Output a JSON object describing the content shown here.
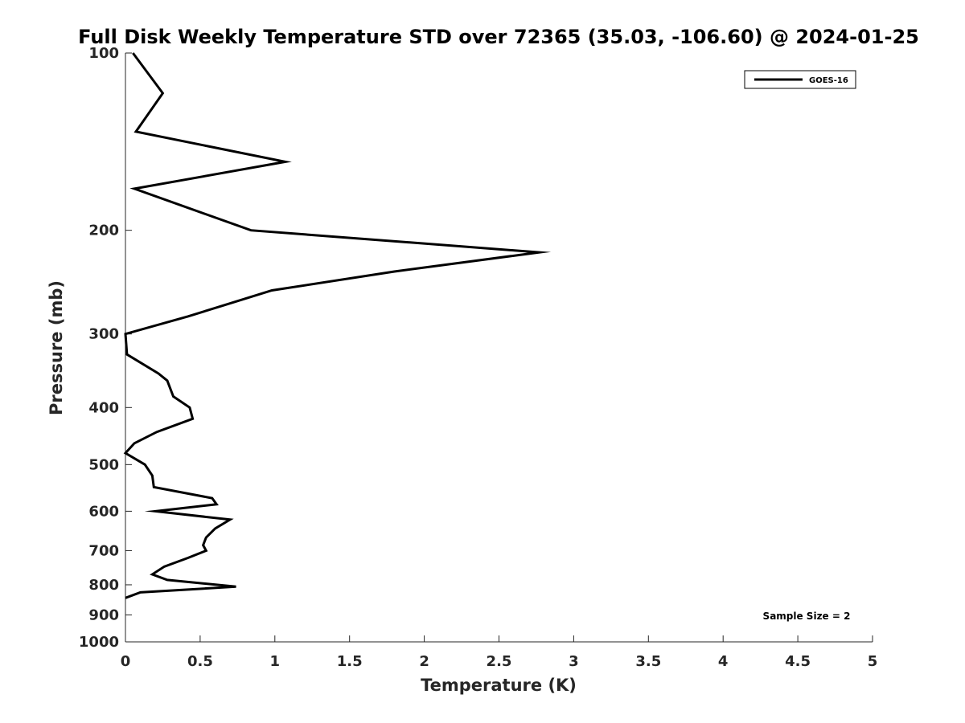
{
  "chart_data": {
    "type": "line",
    "title": "Full Disk Weekly Temperature STD over 72365 (35.03, -106.60) @ 2024-01-25",
    "xlabel": "Temperature (K)",
    "ylabel": "Pressure (mb)",
    "xlim": [
      0,
      5
    ],
    "ylim": [
      100,
      1000
    ],
    "y_scale": "log",
    "y_reversed": true,
    "grid": false,
    "legend_position": "top-right",
    "x_ticks": [
      "0",
      "0.5",
      "1",
      "1.5",
      "2",
      "2.5",
      "3",
      "3.5",
      "4",
      "4.5",
      "5"
    ],
    "y_ticks": [
      "100",
      "200",
      "300",
      "400",
      "500",
      "600",
      "700",
      "800",
      "900",
      "1000"
    ],
    "annotation": "Sample Size = 2",
    "series": [
      {
        "name": "GOES-16",
        "color": "#000000",
        "points": [
          {
            "x": 0.05,
            "y": 100
          },
          {
            "x": 0.25,
            "y": 117
          },
          {
            "x": 0.07,
            "y": 136
          },
          {
            "x": 1.07,
            "y": 153
          },
          {
            "x": 0.06,
            "y": 170
          },
          {
            "x": 0.84,
            "y": 200
          },
          {
            "x": 2.77,
            "y": 218
          },
          {
            "x": 1.8,
            "y": 235
          },
          {
            "x": 0.98,
            "y": 253
          },
          {
            "x": 0.42,
            "y": 280
          },
          {
            "x": 0.0,
            "y": 300
          },
          {
            "x": 0.01,
            "y": 325
          },
          {
            "x": 0.22,
            "y": 350
          },
          {
            "x": 0.28,
            "y": 360
          },
          {
            "x": 0.32,
            "y": 383
          },
          {
            "x": 0.43,
            "y": 400
          },
          {
            "x": 0.45,
            "y": 418
          },
          {
            "x": 0.21,
            "y": 440
          },
          {
            "x": 0.06,
            "y": 460
          },
          {
            "x": 0.0,
            "y": 478
          },
          {
            "x": 0.13,
            "y": 500
          },
          {
            "x": 0.18,
            "y": 522
          },
          {
            "x": 0.19,
            "y": 546
          },
          {
            "x": 0.58,
            "y": 570
          },
          {
            "x": 0.61,
            "y": 584
          },
          {
            "x": 0.2,
            "y": 600
          },
          {
            "x": 0.7,
            "y": 620
          },
          {
            "x": 0.6,
            "y": 642
          },
          {
            "x": 0.54,
            "y": 665
          },
          {
            "x": 0.52,
            "y": 685
          },
          {
            "x": 0.54,
            "y": 700
          },
          {
            "x": 0.42,
            "y": 720
          },
          {
            "x": 0.26,
            "y": 745
          },
          {
            "x": 0.18,
            "y": 768
          },
          {
            "x": 0.28,
            "y": 785
          },
          {
            "x": 0.74,
            "y": 806
          },
          {
            "x": 0.1,
            "y": 824
          },
          {
            "x": 0.0,
            "y": 842
          }
        ]
      }
    ]
  }
}
